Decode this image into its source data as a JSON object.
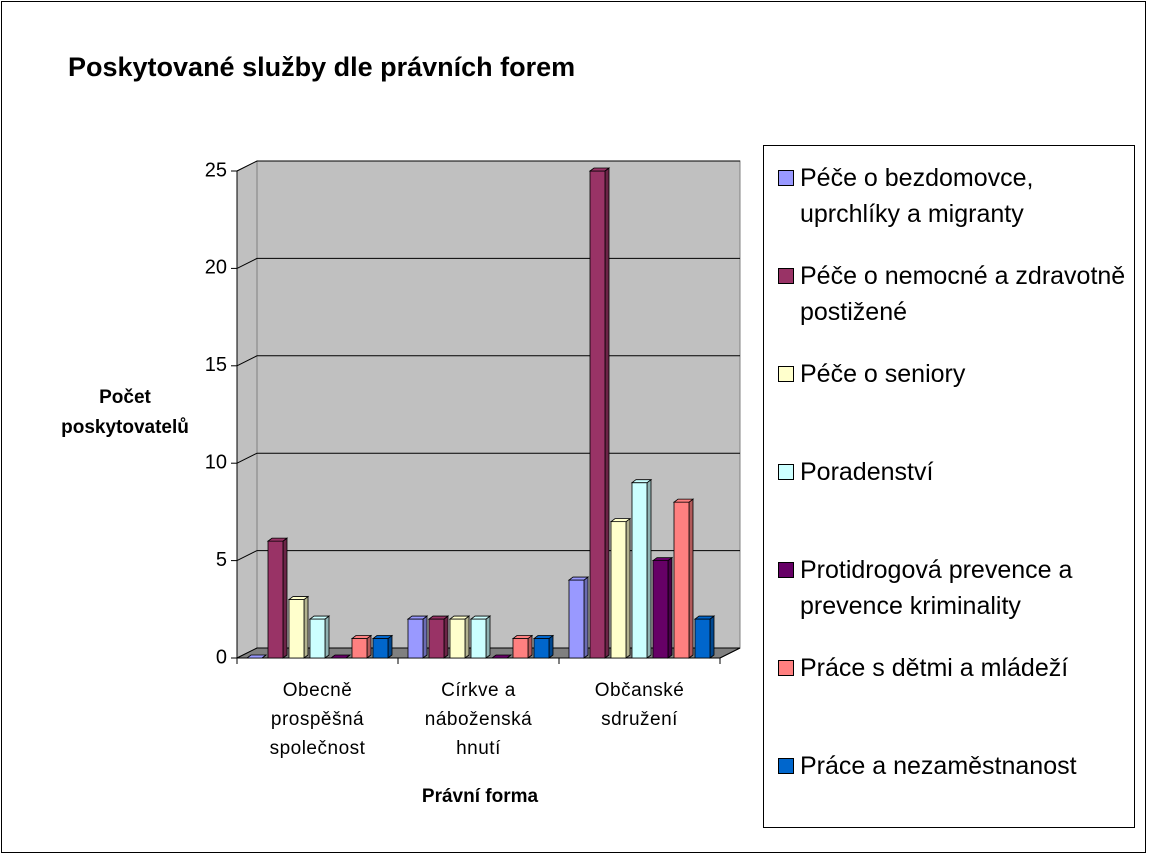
{
  "chart_data": {
    "type": "bar3d",
    "title": "Poskytované služby dle právních forem",
    "y_label": "Počet poskytovatelů",
    "x_label": "Právní forma",
    "categories": [
      "Obecně prospěšná společnost",
      "Církve a náboženská hnutí",
      "Občanské sdružení"
    ],
    "series": [
      {
        "name": "Péče o bezdomovce, uprchlíky a migranty",
        "color": "#9999ff",
        "values": [
          0,
          2,
          4
        ]
      },
      {
        "name": "Péče o nemocné a zdravotně postižené",
        "color": "#993366",
        "values": [
          6,
          2,
          25
        ]
      },
      {
        "name": "Péče o seniory",
        "color": "#ffffcc",
        "values": [
          3,
          2,
          7
        ]
      },
      {
        "name": "Poradenství",
        "color": "#ccffff",
        "values": [
          2,
          2,
          9
        ]
      },
      {
        "name": "Protidrogová prevence a prevence kriminality",
        "color": "#660066",
        "values": [
          0,
          0,
          5
        ]
      },
      {
        "name": "Práce s dětmi a mládeží",
        "color": "#ff8080",
        "values": [
          1,
          1,
          8
        ]
      },
      {
        "name": "Práce a nezaměstnanost",
        "color": "#0066cc",
        "values": [
          1,
          1,
          2
        ]
      }
    ],
    "ylim": [
      0,
      25
    ],
    "yticks": [
      0,
      5,
      10,
      15,
      20,
      25
    ],
    "grid": true
  }
}
